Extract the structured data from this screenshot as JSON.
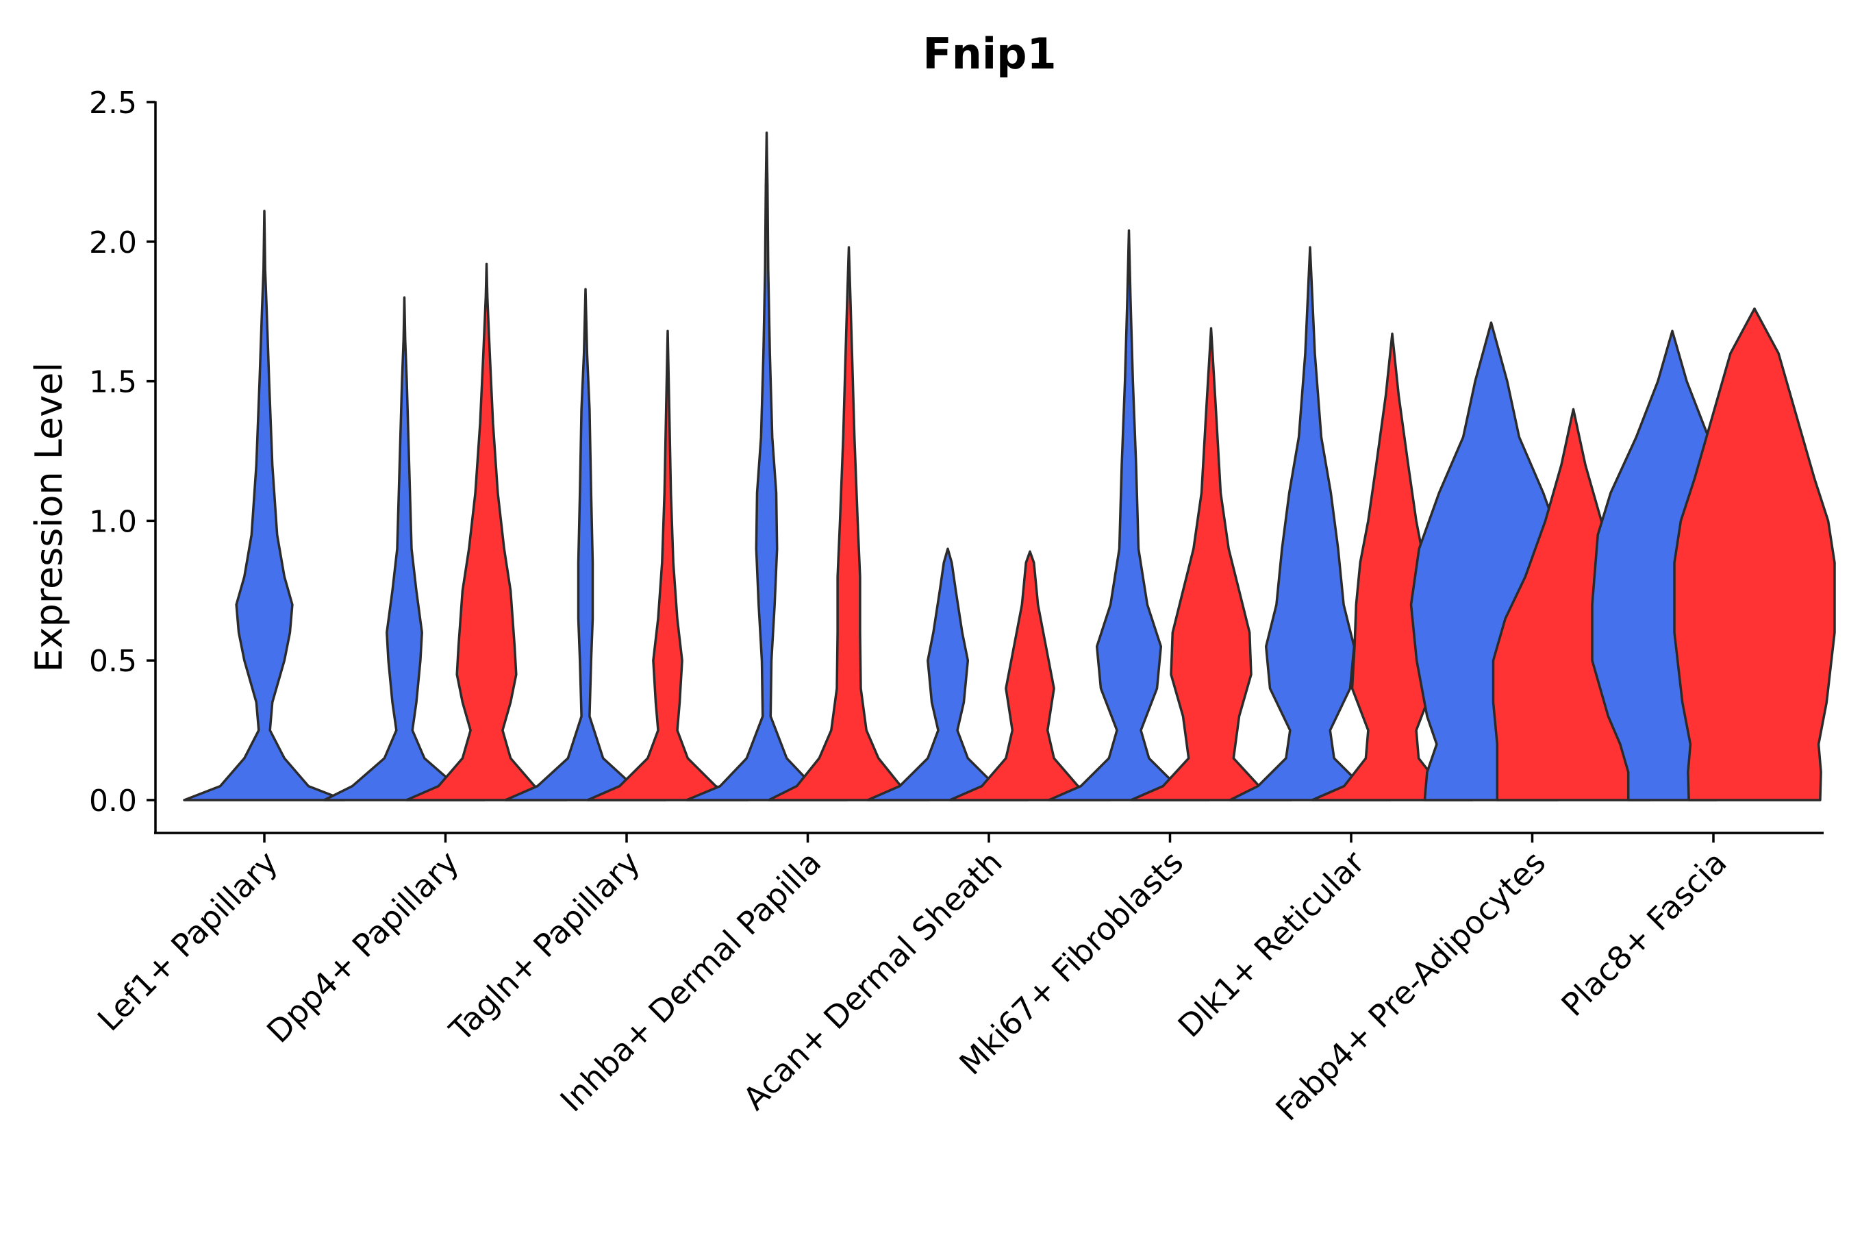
{
  "chart_data": {
    "type": "violin",
    "title": "Fnip1",
    "xlabel": "",
    "ylabel": "Expression Level",
    "ylim": [
      0,
      2.5
    ],
    "yticks": [
      0.0,
      0.5,
      1.0,
      1.5,
      2.0,
      2.5
    ],
    "ytick_labels": [
      "0.0",
      "0.5",
      "1.0",
      "1.5",
      "2.0",
      "2.5"
    ],
    "grid": false,
    "legend": "none",
    "series_colors": {
      "group1": "#4572EC",
      "group2": "#FF3333"
    },
    "categories": [
      "Lef1+ Papillary",
      "Dpp4+ Papillary",
      "Tagln+ Papillary",
      "Inhba+ Dermal Papilla",
      "Acan+ Dermal Sheath",
      "Mki67+ Fibroblasts",
      "Dlk1+ Reticular",
      "Fabp4+ Pre-Adipocytes",
      "Plac8+ Fascia"
    ],
    "violins": [
      {
        "category": "Lef1+ Papillary",
        "group": "group1",
        "max": 2.11,
        "density": [
          [
            0,
            1.0
          ],
          [
            0.05,
            0.55
          ],
          [
            0.15,
            0.25
          ],
          [
            0.25,
            0.07
          ],
          [
            0.35,
            0.1
          ],
          [
            0.5,
            0.25
          ],
          [
            0.6,
            0.32
          ],
          [
            0.7,
            0.35
          ],
          [
            0.8,
            0.25
          ],
          [
            0.95,
            0.16
          ],
          [
            1.2,
            0.1
          ],
          [
            1.5,
            0.06
          ],
          [
            1.75,
            0.03
          ],
          [
            1.9,
            0.01
          ],
          [
            2.11,
            0.0
          ]
        ]
      },
      {
        "category": "Dpp4+ Papillary",
        "group": "group1",
        "max": 1.8,
        "density": [
          [
            0,
            1.0
          ],
          [
            0.05,
            0.65
          ],
          [
            0.15,
            0.25
          ],
          [
            0.25,
            0.1
          ],
          [
            0.35,
            0.15
          ],
          [
            0.5,
            0.2
          ],
          [
            0.6,
            0.22
          ],
          [
            0.75,
            0.15
          ],
          [
            0.9,
            0.09
          ],
          [
            1.2,
            0.06
          ],
          [
            1.5,
            0.03
          ],
          [
            1.65,
            0.01
          ],
          [
            1.8,
            0.0
          ]
        ]
      },
      {
        "category": "Dpp4+ Papillary",
        "group": "group2",
        "max": 1.92,
        "density": [
          [
            0,
            1.0
          ],
          [
            0.05,
            0.6
          ],
          [
            0.15,
            0.3
          ],
          [
            0.25,
            0.2
          ],
          [
            0.35,
            0.3
          ],
          [
            0.45,
            0.37
          ],
          [
            0.55,
            0.35
          ],
          [
            0.75,
            0.3
          ],
          [
            0.9,
            0.22
          ],
          [
            1.1,
            0.14
          ],
          [
            1.35,
            0.08
          ],
          [
            1.6,
            0.04
          ],
          [
            1.8,
            0.01
          ],
          [
            1.92,
            0.0
          ]
        ]
      },
      {
        "category": "Tagln+ Papillary",
        "group": "group1",
        "max": 1.83,
        "density": [
          [
            0,
            1.0
          ],
          [
            0.05,
            0.6
          ],
          [
            0.15,
            0.22
          ],
          [
            0.3,
            0.05
          ],
          [
            0.5,
            0.07
          ],
          [
            0.65,
            0.09
          ],
          [
            0.85,
            0.09
          ],
          [
            1.1,
            0.07
          ],
          [
            1.4,
            0.05
          ],
          [
            1.6,
            0.02
          ],
          [
            1.83,
            0.0
          ]
        ]
      },
      {
        "category": "Tagln+ Papillary",
        "group": "group2",
        "max": 1.68,
        "density": [
          [
            0,
            1.0
          ],
          [
            0.05,
            0.6
          ],
          [
            0.15,
            0.25
          ],
          [
            0.25,
            0.12
          ],
          [
            0.35,
            0.15
          ],
          [
            0.5,
            0.18
          ],
          [
            0.65,
            0.12
          ],
          [
            0.85,
            0.07
          ],
          [
            1.1,
            0.04
          ],
          [
            1.4,
            0.02
          ],
          [
            1.68,
            0.0
          ]
        ]
      },
      {
        "category": "Inhba+ Dermal Papilla",
        "group": "group1",
        "max": 2.39,
        "density": [
          [
            0,
            1.0
          ],
          [
            0.05,
            0.58
          ],
          [
            0.15,
            0.25
          ],
          [
            0.3,
            0.05
          ],
          [
            0.5,
            0.06
          ],
          [
            0.7,
            0.1
          ],
          [
            0.9,
            0.13
          ],
          [
            1.1,
            0.12
          ],
          [
            1.3,
            0.07
          ],
          [
            1.6,
            0.04
          ],
          [
            1.9,
            0.02
          ],
          [
            2.2,
            0.01
          ],
          [
            2.39,
            0.0
          ]
        ]
      },
      {
        "category": "Inhba+ Dermal Papilla",
        "group": "group2",
        "max": 1.98,
        "density": [
          [
            0,
            1.0
          ],
          [
            0.05,
            0.65
          ],
          [
            0.15,
            0.37
          ],
          [
            0.25,
            0.22
          ],
          [
            0.4,
            0.15
          ],
          [
            0.6,
            0.14
          ],
          [
            0.8,
            0.14
          ],
          [
            1.0,
            0.11
          ],
          [
            1.3,
            0.07
          ],
          [
            1.6,
            0.04
          ],
          [
            1.8,
            0.02
          ],
          [
            1.98,
            0.0
          ]
        ]
      },
      {
        "category": "Acan+ Dermal Sheath",
        "group": "group1",
        "max": 0.9,
        "density": [
          [
            0,
            1.0
          ],
          [
            0.05,
            0.6
          ],
          [
            0.15,
            0.25
          ],
          [
            0.25,
            0.12
          ],
          [
            0.35,
            0.2
          ],
          [
            0.5,
            0.25
          ],
          [
            0.6,
            0.18
          ],
          [
            0.75,
            0.1
          ],
          [
            0.85,
            0.05
          ],
          [
            0.9,
            0.0
          ]
        ]
      },
      {
        "category": "Acan+ Dermal Sheath",
        "group": "group2",
        "max": 0.89,
        "density": [
          [
            0,
            1.0
          ],
          [
            0.05,
            0.6
          ],
          [
            0.15,
            0.3
          ],
          [
            0.25,
            0.22
          ],
          [
            0.4,
            0.3
          ],
          [
            0.55,
            0.2
          ],
          [
            0.7,
            0.1
          ],
          [
            0.85,
            0.05
          ],
          [
            0.89,
            0.0
          ]
        ]
      },
      {
        "category": "Mki67+ Fibroblasts",
        "group": "group1",
        "max": 2.04,
        "density": [
          [
            0,
            1.0
          ],
          [
            0.05,
            0.6
          ],
          [
            0.15,
            0.25
          ],
          [
            0.25,
            0.15
          ],
          [
            0.4,
            0.35
          ],
          [
            0.55,
            0.4
          ],
          [
            0.7,
            0.23
          ],
          [
            0.9,
            0.12
          ],
          [
            1.2,
            0.09
          ],
          [
            1.5,
            0.05
          ],
          [
            1.8,
            0.02
          ],
          [
            2.04,
            0.0
          ]
        ]
      },
      {
        "category": "Mki67+ Fibroblasts",
        "group": "group2",
        "max": 1.69,
        "density": [
          [
            0,
            1.0
          ],
          [
            0.05,
            0.6
          ],
          [
            0.15,
            0.28
          ],
          [
            0.3,
            0.35
          ],
          [
            0.45,
            0.5
          ],
          [
            0.6,
            0.48
          ],
          [
            0.75,
            0.35
          ],
          [
            0.9,
            0.22
          ],
          [
            1.1,
            0.12
          ],
          [
            1.4,
            0.06
          ],
          [
            1.69,
            0.0
          ]
        ]
      },
      {
        "category": "Dlk1+ Reticular",
        "group": "group1",
        "max": 1.98,
        "density": [
          [
            0,
            1.0
          ],
          [
            0.05,
            0.65
          ],
          [
            0.15,
            0.3
          ],
          [
            0.25,
            0.25
          ],
          [
            0.4,
            0.5
          ],
          [
            0.55,
            0.55
          ],
          [
            0.7,
            0.42
          ],
          [
            0.9,
            0.35
          ],
          [
            1.1,
            0.26
          ],
          [
            1.3,
            0.14
          ],
          [
            1.6,
            0.06
          ],
          [
            1.98,
            0.0
          ]
        ]
      },
      {
        "category": "Dlk1+ Reticular",
        "group": "group2",
        "max": 1.67,
        "density": [
          [
            0,
            1.0
          ],
          [
            0.05,
            0.6
          ],
          [
            0.15,
            0.33
          ],
          [
            0.25,
            0.3
          ],
          [
            0.4,
            0.5
          ],
          [
            0.55,
            0.47
          ],
          [
            0.7,
            0.45
          ],
          [
            0.85,
            0.4
          ],
          [
            1.0,
            0.3
          ],
          [
            1.2,
            0.2
          ],
          [
            1.45,
            0.08
          ],
          [
            1.67,
            0.0
          ]
        ]
      },
      {
        "category": "Fabp4+ Pre-Adipocytes",
        "group": "group1",
        "max": 1.71,
        "density": [
          [
            0,
            0.83
          ],
          [
            0.1,
            0.8
          ],
          [
            0.2,
            0.68
          ],
          [
            0.3,
            0.8
          ],
          [
            0.5,
            0.93
          ],
          [
            0.7,
            1.0
          ],
          [
            0.9,
            0.9
          ],
          [
            1.1,
            0.65
          ],
          [
            1.3,
            0.35
          ],
          [
            1.5,
            0.2
          ],
          [
            1.71,
            0.0
          ]
        ]
      },
      {
        "category": "Fabp4+ Pre-Adipocytes",
        "group": "group2",
        "max": 1.4,
        "density": [
          [
            0,
            0.95
          ],
          [
            0.2,
            0.95
          ],
          [
            0.35,
            1.0
          ],
          [
            0.5,
            1.0
          ],
          [
            0.65,
            0.85
          ],
          [
            0.8,
            0.6
          ],
          [
            1.0,
            0.35
          ],
          [
            1.2,
            0.15
          ],
          [
            1.4,
            0.0
          ]
        ]
      },
      {
        "category": "Plac8+ Fascia",
        "group": "group1",
        "max": 1.68,
        "density": [
          [
            0,
            0.55
          ],
          [
            0.1,
            0.55
          ],
          [
            0.2,
            0.65
          ],
          [
            0.3,
            0.8
          ],
          [
            0.5,
            1.0
          ],
          [
            0.7,
            1.0
          ],
          [
            0.95,
            0.93
          ],
          [
            1.1,
            0.77
          ],
          [
            1.3,
            0.45
          ],
          [
            1.5,
            0.18
          ],
          [
            1.68,
            0.0
          ]
        ]
      },
      {
        "category": "Plac8+ Fascia",
        "group": "group2",
        "max": 1.76,
        "density": [
          [
            0,
            0.82
          ],
          [
            0.1,
            0.83
          ],
          [
            0.2,
            0.8
          ],
          [
            0.35,
            0.9
          ],
          [
            0.6,
            1.0
          ],
          [
            0.85,
            1.0
          ],
          [
            1.0,
            0.92
          ],
          [
            1.15,
            0.75
          ],
          [
            1.4,
            0.5
          ],
          [
            1.6,
            0.3
          ],
          [
            1.76,
            0.0
          ]
        ]
      }
    ]
  }
}
